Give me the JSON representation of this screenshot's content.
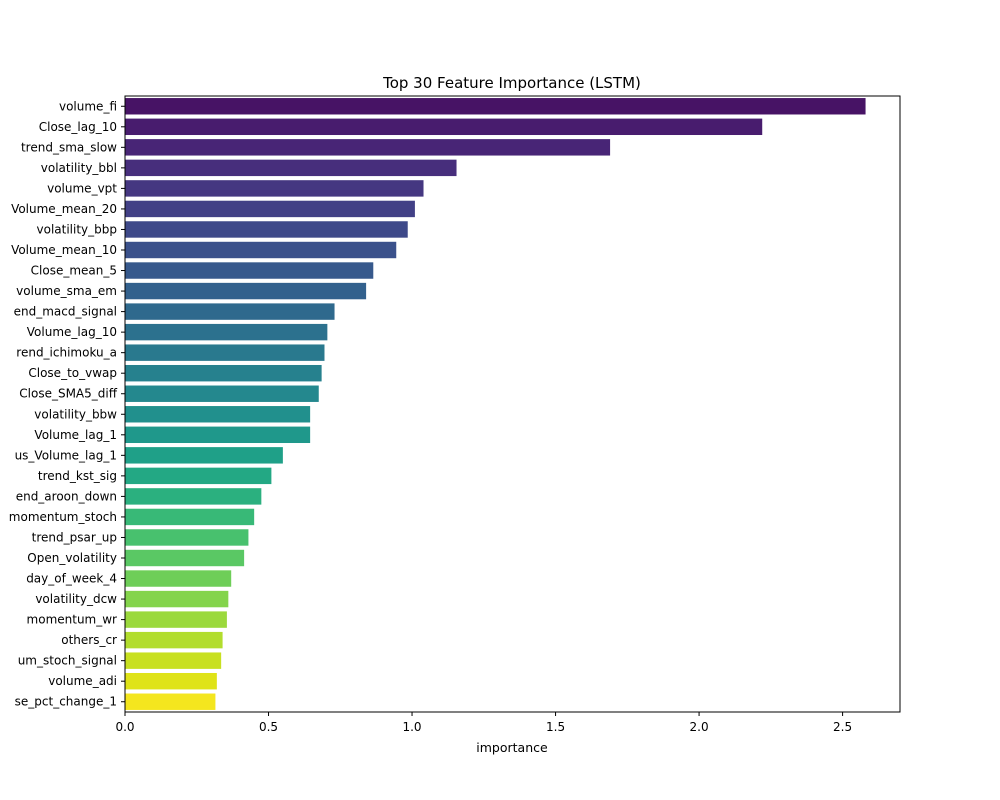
{
  "chart_data": {
    "type": "bar",
    "orientation": "horizontal",
    "title": "Top 30 Feature Importance (LSTM)",
    "xlabel": "importance",
    "ylabel": "",
    "xlim": [
      0,
      2.7
    ],
    "x_ticks": [
      0.0,
      0.5,
      1.0,
      1.5,
      2.0,
      2.5
    ],
    "x_tick_labels": [
      "0.0",
      "0.5",
      "1.0",
      "1.5",
      "2.0",
      "2.5"
    ],
    "grid": false,
    "colormap": "viridis",
    "categories": [
      "volume_fi",
      "Close_lag_10",
      "trend_sma_slow",
      "volatility_bbl",
      "volume_vpt",
      "Volume_mean_20",
      "volatility_bbp",
      "Volume_mean_10",
      "Close_mean_5",
      "volume_sma_em",
      "trend_macd_signal",
      "Volume_lag_10",
      "trend_ichimoku_a",
      "Close_to_vwap",
      "Close_SMA5_diff",
      "volatility_bbw",
      "Volume_lag_1",
      "us_Volume_lag_1",
      "trend_kst_sig",
      "trend_aroon_down",
      "momentum_stoch",
      "trend_psar_up",
      "Open_volatility",
      "day_of_week_4",
      "volatility_dcw",
      "momentum_wr",
      "others_cr",
      "um_stoch_signal",
      "volume_adi",
      "se_pct_change_1"
    ],
    "tick_labels_visible": [
      "volume_fi",
      "Close_lag_10",
      "trend_sma_slow",
      "volatility_bbl",
      "volume_vpt",
      "Volume_mean_20",
      "volatility_bbp",
      "Volume_mean_10",
      "Close_mean_5",
      "volume_sma_em",
      "end_macd_signal",
      "Volume_lag_10",
      "rend_ichimoku_a",
      "Close_to_vwap",
      "Close_SMA5_diff",
      "volatility_bbw",
      "Volume_lag_1",
      "us_Volume_lag_1",
      "trend_kst_sig",
      "end_aroon_down",
      "momentum_stoch",
      "trend_psar_up",
      "Open_volatility",
      "day_of_week_4",
      "volatility_dcw",
      "momentum_wr",
      "others_cr",
      "um_stoch_signal",
      "volume_adi",
      "se_pct_change_1"
    ],
    "values": [
      2.58,
      2.22,
      1.69,
      1.155,
      1.04,
      1.01,
      0.985,
      0.945,
      0.865,
      0.84,
      0.73,
      0.705,
      0.695,
      0.685,
      0.675,
      0.645,
      0.645,
      0.55,
      0.51,
      0.475,
      0.45,
      0.43,
      0.415,
      0.37,
      0.36,
      0.355,
      0.34,
      0.335,
      0.32,
      0.315
    ],
    "colors": [
      "#471365",
      "#481c6e",
      "#482576",
      "#472e7c",
      "#453781",
      "#424086",
      "#3e4989",
      "#3b518b",
      "#37598c",
      "#33618d",
      "#2f698d",
      "#2c718e",
      "#29798e",
      "#26818e",
      "#24888e",
      "#21908d",
      "#1f988b",
      "#1fa088",
      "#23a884",
      "#2bb07f",
      "#38b977",
      "#48c16e",
      "#5ac864",
      "#6ece58",
      "#84d44b",
      "#9bd93c",
      "#b2dd2d",
      "#c8e020",
      "#dfe318",
      "#f4e61e"
    ]
  }
}
